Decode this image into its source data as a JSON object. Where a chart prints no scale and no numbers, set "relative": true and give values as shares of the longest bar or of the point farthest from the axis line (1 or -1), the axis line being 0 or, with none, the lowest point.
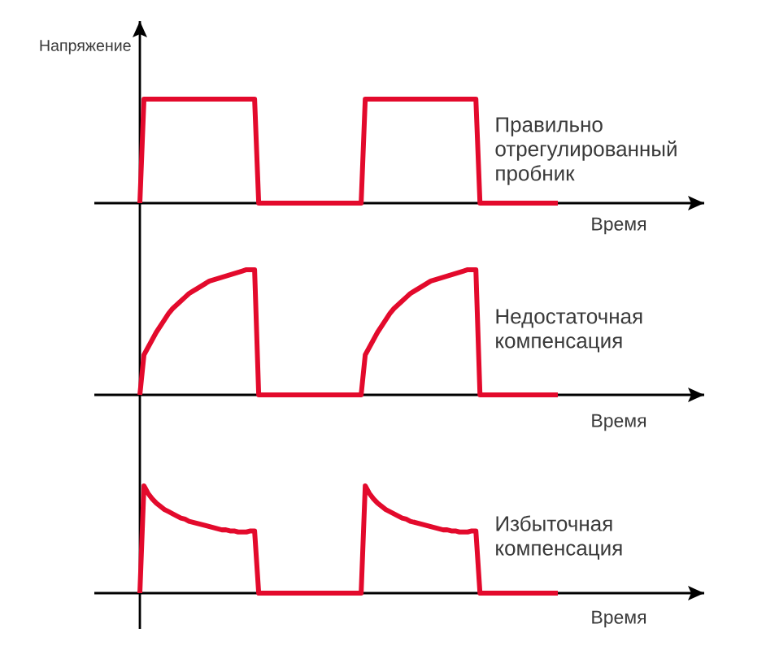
{
  "chart_data": [
    {
      "type": "line",
      "relative": true,
      "ylabel": "Напряжение",
      "xlabel": "Время",
      "categories": [
        null,
        null,
        null,
        null,
        null,
        null,
        null,
        null,
        null,
        null,
        null,
        null,
        null,
        null,
        null,
        null,
        null,
        null,
        null,
        null,
        null,
        null,
        null,
        null,
        null,
        null,
        null,
        null,
        null,
        null,
        null,
        null,
        null,
        null,
        null,
        null,
        null,
        null,
        null,
        null,
        null,
        null,
        null,
        null,
        null,
        null,
        null,
        null,
        null,
        null,
        null,
        null,
        null,
        null,
        null,
        null,
        null,
        null,
        null,
        null,
        null,
        null,
        null,
        null,
        null,
        null,
        null,
        null,
        null,
        null,
        null,
        null,
        null,
        null,
        null,
        null,
        null,
        null,
        null,
        null,
        null,
        null,
        null,
        null,
        null,
        null,
        null,
        null,
        null,
        null,
        null,
        null,
        null,
        null,
        null,
        null,
        null,
        null,
        null,
        null,
        null,
        null,
        null
      ],
      "series": [
        {
          "name": "Правильно отрегулированный пробник",
          "color": "#e30a2c",
          "values": [
            0,
            1,
            1,
            1,
            1,
            1,
            1,
            1,
            1,
            1,
            1,
            1,
            1,
            1,
            1,
            1,
            1,
            1,
            1,
            1,
            1,
            1,
            1,
            1,
            1,
            1,
            1,
            1,
            1,
            0,
            0,
            0,
            0,
            0,
            0,
            0,
            0,
            0,
            0,
            0,
            0,
            0,
            0,
            0,
            0,
            0,
            0,
            0,
            0,
            0,
            0,
            0,
            0,
            0,
            0,
            1,
            1,
            1,
            1,
            1,
            1,
            1,
            1,
            1,
            1,
            1,
            1,
            1,
            1,
            1,
            1,
            1,
            1,
            1,
            1,
            1,
            1,
            1,
            1,
            1,
            1,
            1,
            1,
            0,
            0,
            0,
            0,
            0,
            0,
            0,
            0,
            0,
            0,
            0,
            0,
            0,
            0,
            0,
            0,
            0,
            0,
            0,
            0
          ]
        }
      ]
    },
    {
      "type": "line",
      "relative": true,
      "xlabel": "Время",
      "categories": [
        null,
        null,
        null,
        null,
        null,
        null,
        null,
        null,
        null,
        null,
        null,
        null,
        null,
        null,
        null,
        null,
        null,
        null,
        null,
        null,
        null,
        null,
        null,
        null,
        null,
        null,
        null,
        null,
        null,
        null,
        null,
        null,
        null,
        null,
        null,
        null,
        null,
        null,
        null,
        null,
        null,
        null,
        null,
        null,
        null,
        null,
        null,
        null,
        null,
        null,
        null,
        null,
        null,
        null,
        null,
        null,
        null,
        null,
        null,
        null,
        null,
        null,
        null,
        null,
        null,
        null,
        null,
        null,
        null,
        null,
        null,
        null,
        null,
        null,
        null,
        null,
        null,
        null,
        null,
        null,
        null,
        null,
        null,
        null,
        null,
        null,
        null,
        null,
        null,
        null,
        null,
        null,
        null,
        null,
        null,
        null,
        null,
        null,
        null,
        null,
        null,
        null,
        null
      ],
      "series": [
        {
          "name": "Недостаточная компенсация",
          "color": "#e30a2c",
          "values": [
            0,
            0.32,
            0.38,
            0.44,
            0.5,
            0.55,
            0.6,
            0.65,
            0.69,
            0.72,
            0.75,
            0.78,
            0.81,
            0.83,
            0.85,
            0.87,
            0.89,
            0.91,
            0.92,
            0.93,
            0.94,
            0.95,
            0.96,
            0.97,
            0.98,
            0.99,
            1,
            1,
            1,
            0,
            0,
            0,
            0,
            0,
            0,
            0,
            0,
            0,
            0,
            0,
            0,
            0,
            0,
            0,
            0,
            0,
            0,
            0,
            0,
            0,
            0,
            0,
            0,
            0,
            0,
            0.32,
            0.38,
            0.44,
            0.5,
            0.55,
            0.6,
            0.65,
            0.69,
            0.72,
            0.75,
            0.78,
            0.81,
            0.83,
            0.85,
            0.87,
            0.89,
            0.91,
            0.92,
            0.93,
            0.94,
            0.95,
            0.96,
            0.97,
            0.98,
            0.99,
            1,
            1,
            1,
            0,
            0,
            0,
            0,
            0,
            0,
            0,
            0,
            0,
            0,
            0,
            0,
            0,
            0,
            0,
            0,
            0,
            0,
            0,
            0
          ]
        }
      ]
    },
    {
      "type": "line",
      "relative": true,
      "xlabel": "Время",
      "categories": [
        null,
        null,
        null,
        null,
        null,
        null,
        null,
        null,
        null,
        null,
        null,
        null,
        null,
        null,
        null,
        null,
        null,
        null,
        null,
        null,
        null,
        null,
        null,
        null,
        null,
        null,
        null,
        null,
        null,
        null,
        null,
        null,
        null,
        null,
        null,
        null,
        null,
        null,
        null,
        null,
        null,
        null,
        null,
        null,
        null,
        null,
        null,
        null,
        null,
        null,
        null,
        null,
        null,
        null,
        null,
        null,
        null,
        null,
        null,
        null,
        null,
        null,
        null,
        null,
        null,
        null,
        null,
        null,
        null,
        null,
        null,
        null,
        null,
        null,
        null,
        null,
        null,
        null,
        null,
        null,
        null,
        null,
        null,
        null,
        null,
        null,
        null,
        null,
        null,
        null,
        null,
        null,
        null,
        null,
        null,
        null,
        null,
        null,
        null,
        null,
        null,
        null,
        null
      ],
      "series": [
        {
          "name": "Избыточная компенсация",
          "color": "#e30a2c",
          "values": [
            0,
            1,
            0.93,
            0.88,
            0.84,
            0.81,
            0.78,
            0.76,
            0.74,
            0.72,
            0.7,
            0.69,
            0.67,
            0.66,
            0.65,
            0.64,
            0.63,
            0.62,
            0.61,
            0.6,
            0.59,
            0.59,
            0.58,
            0.58,
            0.57,
            0.57,
            0.57,
            0.58,
            0.58,
            0,
            0,
            0,
            0,
            0,
            0,
            0,
            0,
            0,
            0,
            0,
            0,
            0,
            0,
            0,
            0,
            0,
            0,
            0,
            0,
            0,
            0,
            0,
            0,
            0,
            0,
            1,
            0.93,
            0.88,
            0.84,
            0.81,
            0.78,
            0.76,
            0.74,
            0.72,
            0.7,
            0.69,
            0.67,
            0.66,
            0.65,
            0.64,
            0.63,
            0.62,
            0.61,
            0.6,
            0.59,
            0.59,
            0.58,
            0.58,
            0.57,
            0.57,
            0.57,
            0.58,
            0.58,
            0,
            0,
            0,
            0,
            0,
            0,
            0,
            0,
            0,
            0,
            0,
            0,
            0,
            0,
            0,
            0,
            0,
            0,
            0,
            0
          ]
        }
      ]
    }
  ]
}
